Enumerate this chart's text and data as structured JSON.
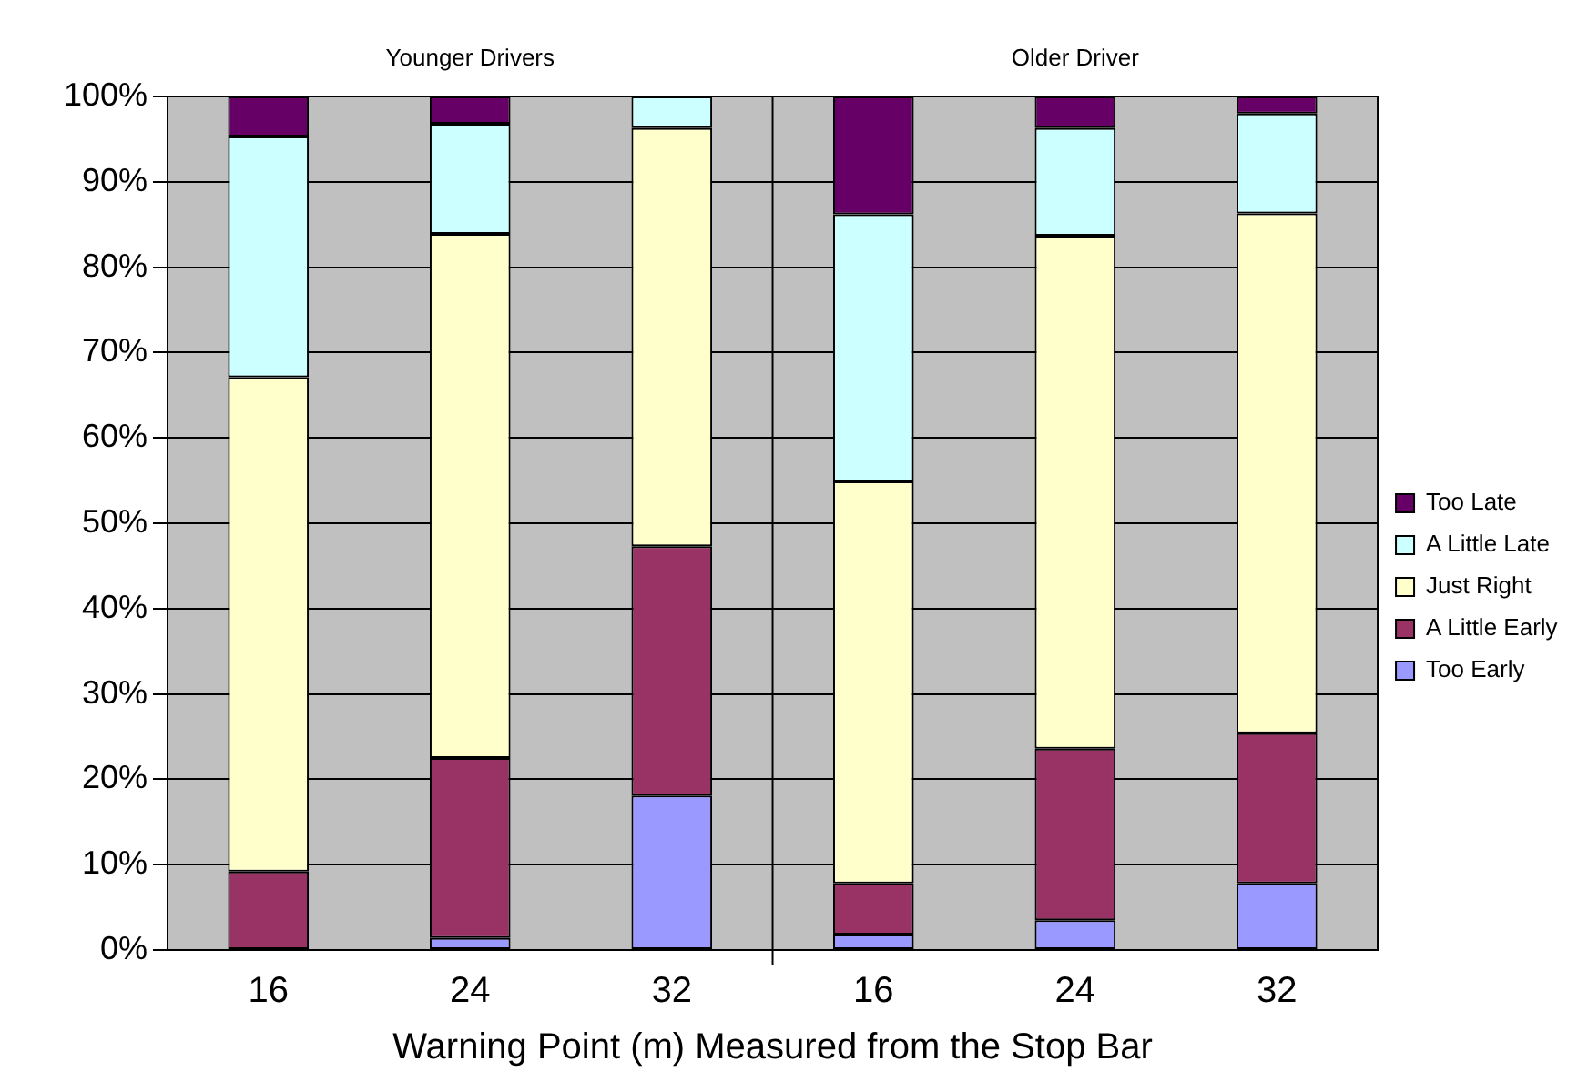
{
  "chart_data": {
    "type": "bar",
    "xlabel": "Warning Point (m) Measured from the Stop Bar",
    "categories": [
      "16",
      "24",
      "32",
      "16",
      "24",
      "32"
    ],
    "stacked": true,
    "series": [
      {
        "name": "Too Early",
        "color": "#9999ff",
        "values": [
          0,
          1.4,
          18.1,
          1.8,
          3.5,
          7.8
        ]
      },
      {
        "name": "A Little Early",
        "color": "#993366",
        "values": [
          9.2,
          21.1,
          29.2,
          6.0,
          20.1,
          17.6
        ]
      },
      {
        "name": "Just Right",
        "color": "#ffffcc",
        "values": [
          57.9,
          61.4,
          49.0,
          47.1,
          60.1,
          60.9
        ]
      },
      {
        "name": "A Little Late",
        "color": "#ccffff",
        "values": [
          28.2,
          12.9,
          3.7,
          31.3,
          12.6,
          11.7
        ]
      },
      {
        "name": "Too Late",
        "color": "#660066",
        "values": [
          4.7,
          3.2,
          0,
          13.8,
          3.7,
          2.0
        ]
      }
    ],
    "ylim": [
      0,
      100
    ],
    "yticks": [
      {
        "value": 0,
        "label": "0%"
      },
      {
        "value": 10,
        "label": "10%"
      },
      {
        "value": 20,
        "label": "20%"
      },
      {
        "value": 30,
        "label": "30%"
      },
      {
        "value": 40,
        "label": "40%"
      },
      {
        "value": 50,
        "label": "50%"
      },
      {
        "value": 60,
        "label": "60%"
      },
      {
        "value": 70,
        "label": "70%"
      },
      {
        "value": 80,
        "label": "80%"
      },
      {
        "value": 90,
        "label": "90%"
      },
      {
        "value": 100,
        "label": "100%"
      }
    ],
    "grid": "y",
    "legend": "right",
    "annotations": [
      "Younger Drivers",
      "Older Driver"
    ]
  }
}
